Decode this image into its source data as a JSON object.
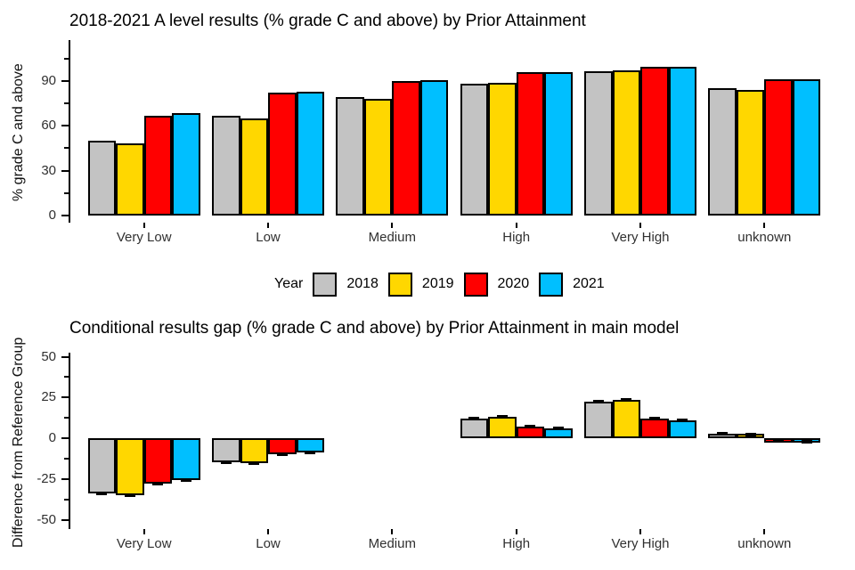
{
  "figure": {
    "background": "#ffffff"
  },
  "legend": {
    "title": "Year",
    "entries": [
      {
        "label": "2018",
        "color": "#c3c3c3"
      },
      {
        "label": "2019",
        "color": "#ffd700"
      },
      {
        "label": "2020",
        "color": "#ff0000"
      },
      {
        "label": "2021",
        "color": "#00bfff"
      }
    ]
  },
  "chart_data": [
    {
      "type": "bar",
      "title": "2018-2021 A level results (% grade C and above) by Prior Attainment",
      "ylabel": "% grade C and above",
      "xlabel": "",
      "categories": [
        "Very Low",
        "Low",
        "Medium",
        "High",
        "Very High",
        "unknown"
      ],
      "series": [
        {
          "name": "2018",
          "color": "#c3c3c3",
          "values": [
            50,
            67,
            79,
            88,
            96.5,
            85
          ]
        },
        {
          "name": "2019",
          "color": "#ffd700",
          "values": [
            48,
            65,
            78,
            88.5,
            97,
            84
          ]
        },
        {
          "name": "2020",
          "color": "#ff0000",
          "values": [
            66.5,
            82,
            90,
            96,
            99.5,
            91
          ]
        },
        {
          "name": "2021",
          "color": "#00bfff",
          "values": [
            68.5,
            83,
            90.5,
            96,
            99.5,
            91
          ]
        }
      ],
      "yticks": [
        0,
        30,
        60,
        90
      ],
      "minor_yticks": [
        15,
        45,
        75,
        105
      ],
      "ylim": [
        -5,
        117
      ],
      "grid": false,
      "legend_position": "bottom",
      "bar_outline": "#000000",
      "error_bars": false
    },
    {
      "type": "bar",
      "title": "Conditional results gap (% grade C and above) by Prior Attainment in main model",
      "ylabel": "Difference from Reference Group",
      "xlabel": "",
      "categories": [
        "Very Low",
        "Low",
        "Medium",
        "High",
        "Very High",
        "unknown"
      ],
      "reference_category": "Medium",
      "series": [
        {
          "name": "2018",
          "color": "#c3c3c3",
          "values": [
            -34,
            -15,
            0,
            12,
            22.5,
            3
          ]
        },
        {
          "name": "2019",
          "color": "#ffd700",
          "values": [
            -35,
            -15.5,
            0,
            13,
            23.5,
            2
          ]
        },
        {
          "name": "2020",
          "color": "#ff0000",
          "values": [
            -28,
            -10,
            0,
            7,
            12,
            -1.5
          ]
        },
        {
          "name": "2021",
          "color": "#00bfff",
          "values": [
            -25.5,
            -9,
            0,
            6,
            11,
            -2
          ]
        }
      ],
      "yticks": [
        50,
        25,
        0,
        -25,
        -50
      ],
      "minor_yticks": [
        37.5,
        12.5,
        -12.5,
        -37.5
      ],
      "ylim": [
        -56,
        53
      ],
      "grid": false,
      "bar_outline": "#000000",
      "error_bars": true
    }
  ]
}
